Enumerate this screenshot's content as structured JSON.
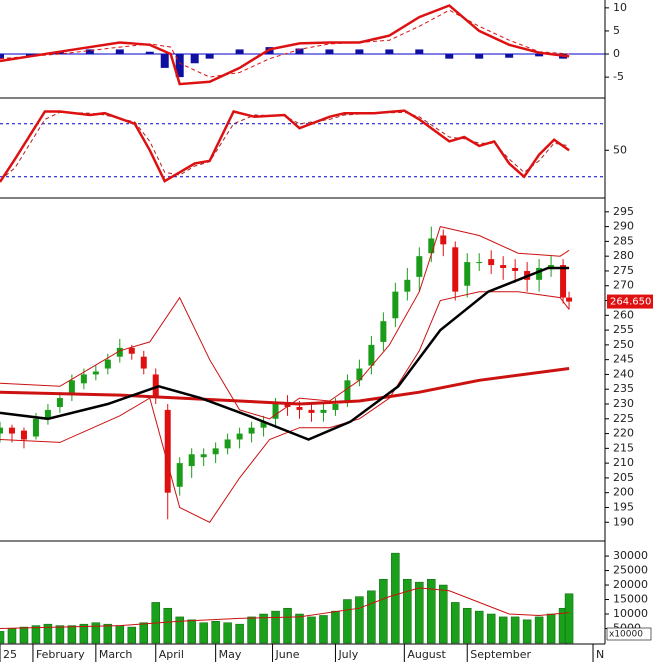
{
  "chart_data": [
    {
      "type": "line",
      "xlim": [
        0,
        202
      ],
      "ylim": [
        -9.3,
        11.7
      ],
      "yticks": [
        10,
        5,
        0,
        -5
      ],
      "levels": [
        0
      ],
      "level_color": "#0000cc",
      "level_style": "solid",
      "series": [
        {
          "type": "bar",
          "color": "#1010a0",
          "x": [
            0,
            10,
            20,
            30,
            40,
            50,
            55,
            60,
            65,
            70,
            80,
            90,
            100,
            110,
            120,
            130,
            140,
            150,
            160,
            170,
            180,
            188
          ],
          "values": [
            -1,
            -0.5,
            0.5,
            1,
            1,
            0.5,
            -3,
            -5,
            -2,
            -1,
            1,
            1.5,
            1.2,
            1,
            1,
            1,
            1,
            -1,
            -1,
            -0.8,
            -0.5,
            -1
          ]
        },
        {
          "type": "line",
          "color": "#dd1111",
          "style": "dashed",
          "x": [
            0,
            20,
            40,
            50,
            57,
            60,
            70,
            80,
            90,
            100,
            110,
            120,
            130,
            140,
            150,
            160,
            170,
            180,
            190
          ],
          "values": [
            -1,
            0,
            1.5,
            2.2,
            1.5,
            -2,
            -5,
            -4,
            -1,
            1,
            2.2,
            2.5,
            3,
            6,
            9.5,
            6,
            3,
            0.5,
            0
          ]
        },
        {
          "type": "line",
          "color": "#dd1111",
          "style": "solid",
          "x": [
            0,
            20,
            40,
            50,
            57,
            60,
            70,
            80,
            90,
            100,
            110,
            120,
            130,
            140,
            150,
            160,
            170,
            180,
            190
          ],
          "values": [
            -1.5,
            0.5,
            2.5,
            2,
            0,
            -6.5,
            -6,
            -3,
            1,
            2.3,
            2.5,
            2.5,
            4,
            8,
            10.5,
            5,
            2,
            0.3,
            -0.5
          ]
        }
      ]
    },
    {
      "type": "line",
      "xlim": [
        0,
        202
      ],
      "ylim": [
        -3,
        107
      ],
      "yticks": [
        50
      ],
      "levels": [
        20,
        80
      ],
      "level_color": "#0000cc",
      "level_style": "dashed",
      "series": [
        {
          "type": "line",
          "color": "#aa2222",
          "style": "dashed",
          "x": [
            0,
            5,
            15,
            20,
            30,
            35,
            45,
            50,
            55,
            60,
            65,
            70,
            78,
            85,
            95,
            100,
            110,
            115,
            125,
            135,
            140,
            150,
            155,
            160,
            165,
            170,
            175,
            180,
            185,
            190
          ],
          "values": [
            16,
            30,
            85,
            93,
            92,
            90,
            82,
            60,
            25,
            22,
            32,
            37,
            80,
            90,
            89,
            80,
            85,
            90,
            92,
            93,
            88,
            65,
            63,
            58,
            58,
            40,
            25,
            38,
            58,
            55
          ]
        },
        {
          "type": "line",
          "color": "#dd1111",
          "style": "solid",
          "x": [
            0,
            5,
            15,
            20,
            30,
            35,
            45,
            50,
            55,
            60,
            65,
            70,
            78,
            85,
            95,
            100,
            110,
            115,
            125,
            135,
            140,
            150,
            155,
            160,
            165,
            170,
            175,
            180,
            185,
            190
          ],
          "values": [
            14,
            40,
            94,
            94,
            90,
            92,
            80,
            50,
            15,
            25,
            35,
            38,
            94,
            88,
            90,
            75,
            88,
            92,
            92,
            95,
            85,
            60,
            65,
            55,
            60,
            35,
            20,
            45,
            62,
            50
          ]
        }
      ]
    },
    {
      "type": "candlestick",
      "xlim": [
        0,
        202
      ],
      "ylim": [
        184,
        299
      ],
      "yticks": [
        190,
        195,
        200,
        205,
        210,
        215,
        220,
        225,
        230,
        235,
        240,
        245,
        250,
        255,
        260,
        265,
        270,
        275,
        280,
        285,
        290,
        295
      ],
      "up_color": "#1a9c1a",
      "down_color": "#e01010",
      "last_price": {
        "value": 264.65,
        "label": "264.650"
      },
      "last_price_color": "#e01010",
      "x": [
        0,
        4,
        8,
        12,
        16,
        20,
        24,
        28,
        32,
        36,
        40,
        44,
        48,
        52,
        56,
        60,
        64,
        68,
        72,
        76,
        80,
        84,
        88,
        92,
        96,
        100,
        104,
        108,
        112,
        116,
        120,
        124,
        128,
        132,
        136,
        140,
        144,
        148,
        152,
        156,
        160,
        164,
        168,
        172,
        176,
        180,
        184,
        188,
        190
      ],
      "open": [
        220,
        222,
        221,
        219,
        225,
        229,
        233,
        237,
        240,
        242,
        246,
        249,
        246,
        240,
        228,
        202,
        209,
        212,
        213,
        215,
        218,
        220,
        222,
        225,
        230,
        229,
        228,
        227,
        228,
        231,
        238,
        243,
        251,
        259,
        268,
        273,
        281,
        287,
        283,
        270,
        278,
        279,
        277,
        276,
        275,
        272,
        276,
        277,
        266
      ],
      "high": [
        224,
        223,
        222,
        227,
        230,
        234,
        240,
        242,
        243,
        247,
        252,
        250,
        248,
        242,
        230,
        212,
        215,
        215,
        217,
        220,
        222,
        224,
        226,
        232,
        233,
        231,
        230,
        230,
        232,
        240,
        245,
        253,
        261,
        271,
        276,
        283,
        290,
        289,
        285,
        281,
        281,
        282,
        280,
        279,
        278,
        279,
        280,
        279,
        268
      ],
      "low": [
        217,
        217,
        215,
        218,
        223,
        227,
        231,
        235,
        238,
        240,
        244,
        245,
        240,
        230,
        191,
        199,
        205,
        209,
        210,
        213,
        215,
        217,
        219,
        222,
        226,
        225,
        224,
        224,
        226,
        229,
        236,
        240,
        248,
        256,
        265,
        268,
        278,
        280,
        265,
        266,
        275,
        274,
        272,
        271,
        268,
        268,
        273,
        264,
        262
      ],
      "close": [
        222,
        220,
        218,
        225,
        228,
        232,
        238,
        240,
        241,
        245,
        249,
        247,
        242,
        232,
        200,
        210,
        213,
        213,
        215,
        218,
        220,
        222,
        224,
        230,
        229,
        228,
        227,
        228,
        230,
        238,
        242,
        250,
        258,
        268,
        272,
        280,
        286,
        284,
        268,
        278,
        278,
        277,
        276,
        275,
        272,
        276,
        277,
        266,
        264.65
      ],
      "series": [
        {
          "type": "line",
          "color": "#cc1111",
          "width": 1,
          "x": [
            0,
            20,
            40,
            50,
            60,
            70,
            80,
            90,
            100,
            110,
            120,
            130,
            140,
            147,
            160,
            173,
            187,
            190
          ],
          "values": [
            237,
            236,
            248,
            251,
            266,
            245,
            228,
            225,
            232,
            231,
            238,
            250,
            268,
            290,
            287,
            281,
            280,
            282
          ]
        },
        {
          "type": "line",
          "color": "#cc1111",
          "width": 1,
          "x": [
            0,
            20,
            40,
            50,
            60,
            70,
            80,
            90,
            100,
            110,
            120,
            130,
            140,
            147,
            160,
            173,
            187,
            190
          ],
          "values": [
            218,
            217,
            226,
            232,
            195,
            190,
            205,
            218,
            222,
            222,
            225,
            232,
            248,
            265,
            268,
            268,
            266,
            262
          ]
        },
        {
          "type": "line",
          "color": "#cc1111",
          "width": 3,
          "x": [
            0,
            40,
            80,
            100,
            120,
            140,
            160,
            190
          ],
          "values": [
            234,
            233,
            231,
            230,
            231,
            234,
            238,
            242
          ]
        },
        {
          "type": "line",
          "color": "#000000",
          "width": 2.5,
          "x": [
            0,
            16,
            36,
            53,
            67,
            83,
            103,
            117,
            133,
            147,
            163,
            183,
            190
          ],
          "values": [
            227,
            225,
            230,
            236,
            232,
            226,
            218,
            224,
            236,
            255,
            268,
            276,
            276
          ]
        }
      ]
    },
    {
      "type": "bar",
      "xlim": [
        0,
        202
      ],
      "ylim": [
        0,
        34500
      ],
      "yticks": [
        5000,
        10000,
        15000,
        20000,
        25000,
        30000
      ],
      "unit_label": "x10000",
      "xticks": [
        {
          "value": 0,
          "label": "25"
        },
        {
          "value": 11,
          "label": "February"
        },
        {
          "value": 32,
          "label": "March"
        },
        {
          "value": 52,
          "label": "April"
        },
        {
          "value": 72,
          "label": "May"
        },
        {
          "value": 91,
          "label": "June"
        },
        {
          "value": 112,
          "label": "July"
        },
        {
          "value": 135,
          "label": "August"
        },
        {
          "value": 156,
          "label": "September"
        },
        {
          "value": 198,
          "label": "N"
        }
      ],
      "color": "#1aa01a",
      "x": [
        0,
        4,
        8,
        12,
        16,
        20,
        24,
        28,
        32,
        36,
        40,
        44,
        48,
        52,
        56,
        60,
        64,
        68,
        72,
        76,
        80,
        84,
        88,
        92,
        96,
        100,
        104,
        108,
        112,
        116,
        120,
        124,
        128,
        132,
        136,
        140,
        144,
        148,
        152,
        156,
        160,
        164,
        168,
        172,
        176,
        180,
        184,
        188,
        190
      ],
      "values": [
        4000,
        5000,
        5500,
        6000,
        6500,
        6000,
        6000,
        6500,
        7000,
        6500,
        6000,
        5500,
        7000,
        14000,
        12000,
        9000,
        8000,
        7000,
        7500,
        7000,
        6500,
        9000,
        10000,
        11000,
        12000,
        10000,
        9000,
        9500,
        11000,
        15000,
        16000,
        18000,
        22000,
        31000,
        22000,
        21000,
        22000,
        20000,
        14000,
        12000,
        11000,
        10000,
        9000,
        9000,
        8000,
        9000,
        10000,
        12000,
        17000
      ],
      "series": [
        {
          "type": "line",
          "color": "#cc1111",
          "width": 1,
          "x": [
            0,
            40,
            60,
            80,
            100,
            120,
            130,
            140,
            150,
            160,
            170,
            180,
            190
          ],
          "values": [
            5000,
            6000,
            7500,
            8500,
            9000,
            12000,
            16000,
            19000,
            18000,
            14000,
            10000,
            9500,
            10500
          ]
        }
      ]
    }
  ]
}
